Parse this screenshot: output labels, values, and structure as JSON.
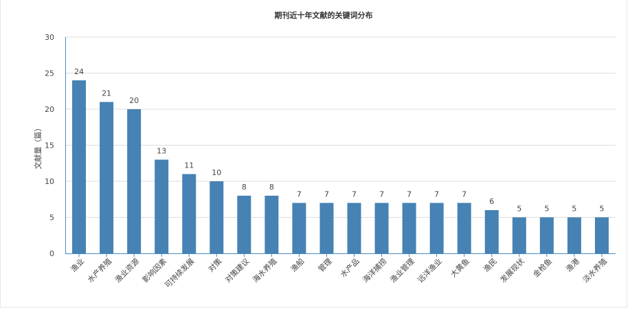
{
  "chart_data": {
    "type": "bar",
    "title": "期刊近十年文献的关键词分布",
    "ylabel": "文献量（篇）",
    "xlabel": "",
    "ylim": [
      0,
      30
    ],
    "yticks": [
      0,
      5,
      10,
      15,
      20,
      25,
      30
    ],
    "grid": true,
    "categories": [
      "渔业",
      "水产养殖",
      "渔业资源",
      "影响因素",
      "可持续发展",
      "对策",
      "对策建议",
      "海水养殖",
      "渔船",
      "管理",
      "水产品",
      "海洋捕捞",
      "渔业管理",
      "远洋渔业",
      "大黄鱼",
      "渔民",
      "发展现状",
      "金枪鱼",
      "渔港",
      "淡水养殖"
    ],
    "values": [
      24,
      21,
      20,
      13,
      11,
      10,
      8,
      8,
      7,
      7,
      7,
      7,
      7,
      7,
      7,
      6,
      5,
      5,
      5,
      5
    ],
    "bar_color": "#4682b4",
    "axis_color": "#4a8bbf",
    "grid_color": "#dddddd"
  }
}
